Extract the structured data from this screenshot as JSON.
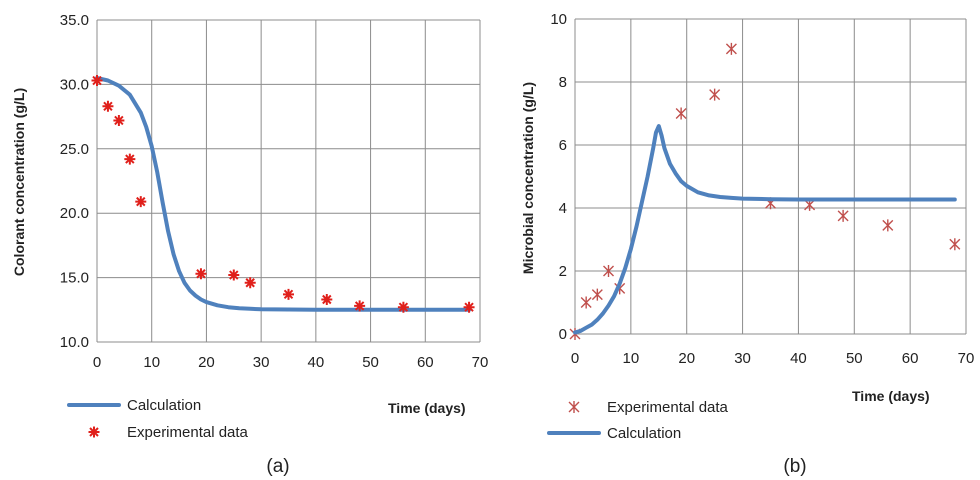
{
  "chart_data": [
    {
      "type": "line",
      "panel_label": "(a)",
      "xlabel": "Time (days)",
      "ylabel": "Colorant concentration (g/L)",
      "xlim": [
        0,
        70
      ],
      "ylim": [
        10,
        35
      ],
      "x_ticks": [
        "0",
        "10",
        "20",
        "30",
        "40",
        "50",
        "60",
        "70"
      ],
      "y_ticks": [
        "10.0",
        "15.0",
        "20.0",
        "25.0",
        "30.0",
        "35.0"
      ],
      "grid": true,
      "legend_position": "bottom-left",
      "legend": [
        "Calculation",
        "Experimental data"
      ],
      "series": [
        {
          "name": "Calculation",
          "kind": "line",
          "color": "#4f81bd",
          "x": [
            0,
            2,
            4,
            6,
            8,
            9,
            10,
            11,
            12,
            13,
            14,
            15,
            16,
            17,
            18,
            19,
            20,
            22,
            24,
            26,
            28,
            30,
            35,
            40,
            50,
            60,
            68
          ],
          "y": [
            30.5,
            30.3,
            29.9,
            29.2,
            27.8,
            26.7,
            25.2,
            23.2,
            20.8,
            18.6,
            16.8,
            15.5,
            14.6,
            14.0,
            13.6,
            13.3,
            13.1,
            12.85,
            12.7,
            12.62,
            12.58,
            12.55,
            12.52,
            12.5,
            12.5,
            12.5,
            12.5
          ]
        },
        {
          "name": "Experimental data",
          "kind": "scatter",
          "marker": "star",
          "color": "#e0201b",
          "x": [
            0,
            2,
            4,
            6,
            8,
            19,
            25,
            28,
            35,
            42,
            48,
            56,
            68
          ],
          "y": [
            30.3,
            28.3,
            27.2,
            24.2,
            20.9,
            15.3,
            15.2,
            14.6,
            13.7,
            13.3,
            12.8,
            12.7,
            12.7
          ]
        }
      ]
    },
    {
      "type": "line",
      "panel_label": "(b)",
      "xlabel": "Time (days)",
      "ylabel": "Microbial concentration (g/L)",
      "xlim": [
        0,
        70
      ],
      "ylim": [
        0,
        10
      ],
      "x_ticks": [
        "0",
        "10",
        "20",
        "30",
        "40",
        "50",
        "60",
        "70"
      ],
      "y_ticks": [
        "0",
        "2",
        "4",
        "6",
        "8",
        "10"
      ],
      "grid": true,
      "legend_position": "bottom-left",
      "legend": [
        "Experimental data",
        "Calculation"
      ],
      "series": [
        {
          "name": "Experimental data",
          "kind": "scatter",
          "marker": "asterisk",
          "color": "#c0504d",
          "x": [
            0,
            2,
            4,
            6,
            8,
            19,
            25,
            28,
            35,
            42,
            48,
            56,
            68
          ],
          "y": [
            0,
            1.0,
            1.25,
            2.0,
            1.45,
            7.0,
            7.6,
            9.05,
            4.15,
            4.1,
            3.75,
            3.45,
            2.85
          ]
        },
        {
          "name": "Calculation",
          "kind": "line",
          "color": "#4f81bd",
          "x": [
            0,
            1,
            2,
            3,
            4,
            5,
            6,
            7,
            8,
            9,
            10,
            11,
            12,
            13,
            14,
            14.5,
            15,
            15.5,
            16,
            17,
            18,
            19,
            20,
            22,
            24,
            26,
            28,
            30,
            35,
            40,
            50,
            60,
            68
          ],
          "y": [
            0.05,
            0.1,
            0.2,
            0.3,
            0.45,
            0.65,
            0.9,
            1.2,
            1.6,
            2.1,
            2.7,
            3.4,
            4.2,
            5.0,
            5.9,
            6.4,
            6.6,
            6.3,
            5.9,
            5.4,
            5.1,
            4.85,
            4.7,
            4.5,
            4.4,
            4.35,
            4.32,
            4.3,
            4.28,
            4.27,
            4.27,
            4.27,
            4.27
          ]
        }
      ]
    }
  ]
}
